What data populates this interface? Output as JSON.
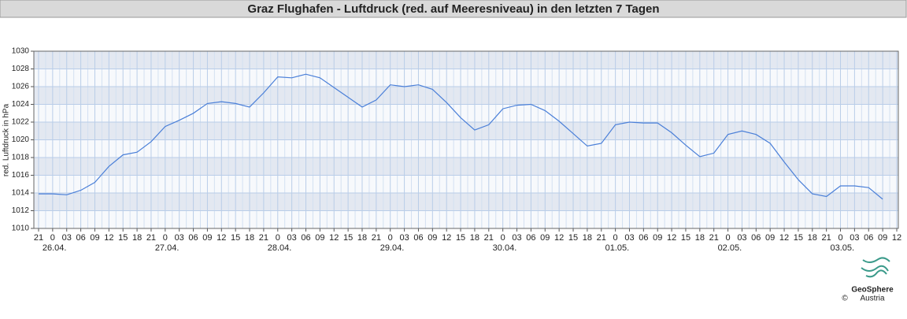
{
  "chart_data": {
    "type": "line",
    "title": "Graz Flughafen - Luftdruck (red. auf Meeresniveau) in den letzten 7 Tagen",
    "y_label": "red. Luftdruck in hPa",
    "categories": [
      "21",
      "0",
      "03",
      "06",
      "09",
      "12",
      "15",
      "18",
      "21",
      "0",
      "03",
      "06",
      "09",
      "12",
      "15",
      "18",
      "21",
      "0",
      "03",
      "06",
      "09",
      "12",
      "15",
      "18",
      "21",
      "0",
      "03",
      "06",
      "09",
      "12",
      "15",
      "18",
      "21",
      "0",
      "03",
      "06",
      "09",
      "12",
      "15",
      "18",
      "21",
      "0",
      "03",
      "06",
      "09",
      "12",
      "15",
      "18",
      "21",
      "0",
      "03",
      "06",
      "09",
      "12",
      "15",
      "18",
      "21",
      "0",
      "03",
      "06",
      "09",
      "12"
    ],
    "dates": [
      "26.04.",
      "27.04.",
      "28.04.",
      "29.04.",
      "30.04.",
      "01.05.",
      "02.05.",
      "03.05."
    ],
    "series": [
      {
        "name": "Luftdruck",
        "color": "#4a7fd8",
        "values": [
          1013.9,
          1013.9,
          1013.8,
          1014.3,
          1015.2,
          1017.0,
          1018.3,
          1018.6,
          1019.8,
          1021.5,
          1022.2,
          1023.0,
          1024.1,
          1024.3,
          1024.1,
          1023.7,
          1025.3,
          1027.1,
          1027.0,
          1027.4,
          1027.0,
          1025.9,
          1024.8,
          1023.7,
          1024.5,
          1026.2,
          1026.0,
          1026.2,
          1025.7,
          1024.2,
          1022.5,
          1021.1,
          1021.7,
          1023.5,
          1023.9,
          1024.0,
          1023.3,
          1022.1,
          1020.7,
          1019.3,
          1019.6,
          1021.7,
          1022.0,
          1021.9,
          1021.9,
          1020.8,
          1019.4,
          1018.1,
          1018.5,
          1020.6,
          1021.0,
          1020.6,
          1019.6,
          1017.5,
          1015.5,
          1013.9,
          1013.6,
          1014.8,
          1014.8,
          1014.6,
          1013.3,
          null
        ]
      }
    ],
    "ylim": [
      1010,
      1030
    ],
    "yticks": [
      1010,
      1012,
      1014,
      1016,
      1018,
      1020,
      1022,
      1024,
      1026,
      1028,
      1030
    ],
    "grid": true,
    "credit": "GeoSphere",
    "credit_sub": "Austria",
    "copyright": "©"
  }
}
